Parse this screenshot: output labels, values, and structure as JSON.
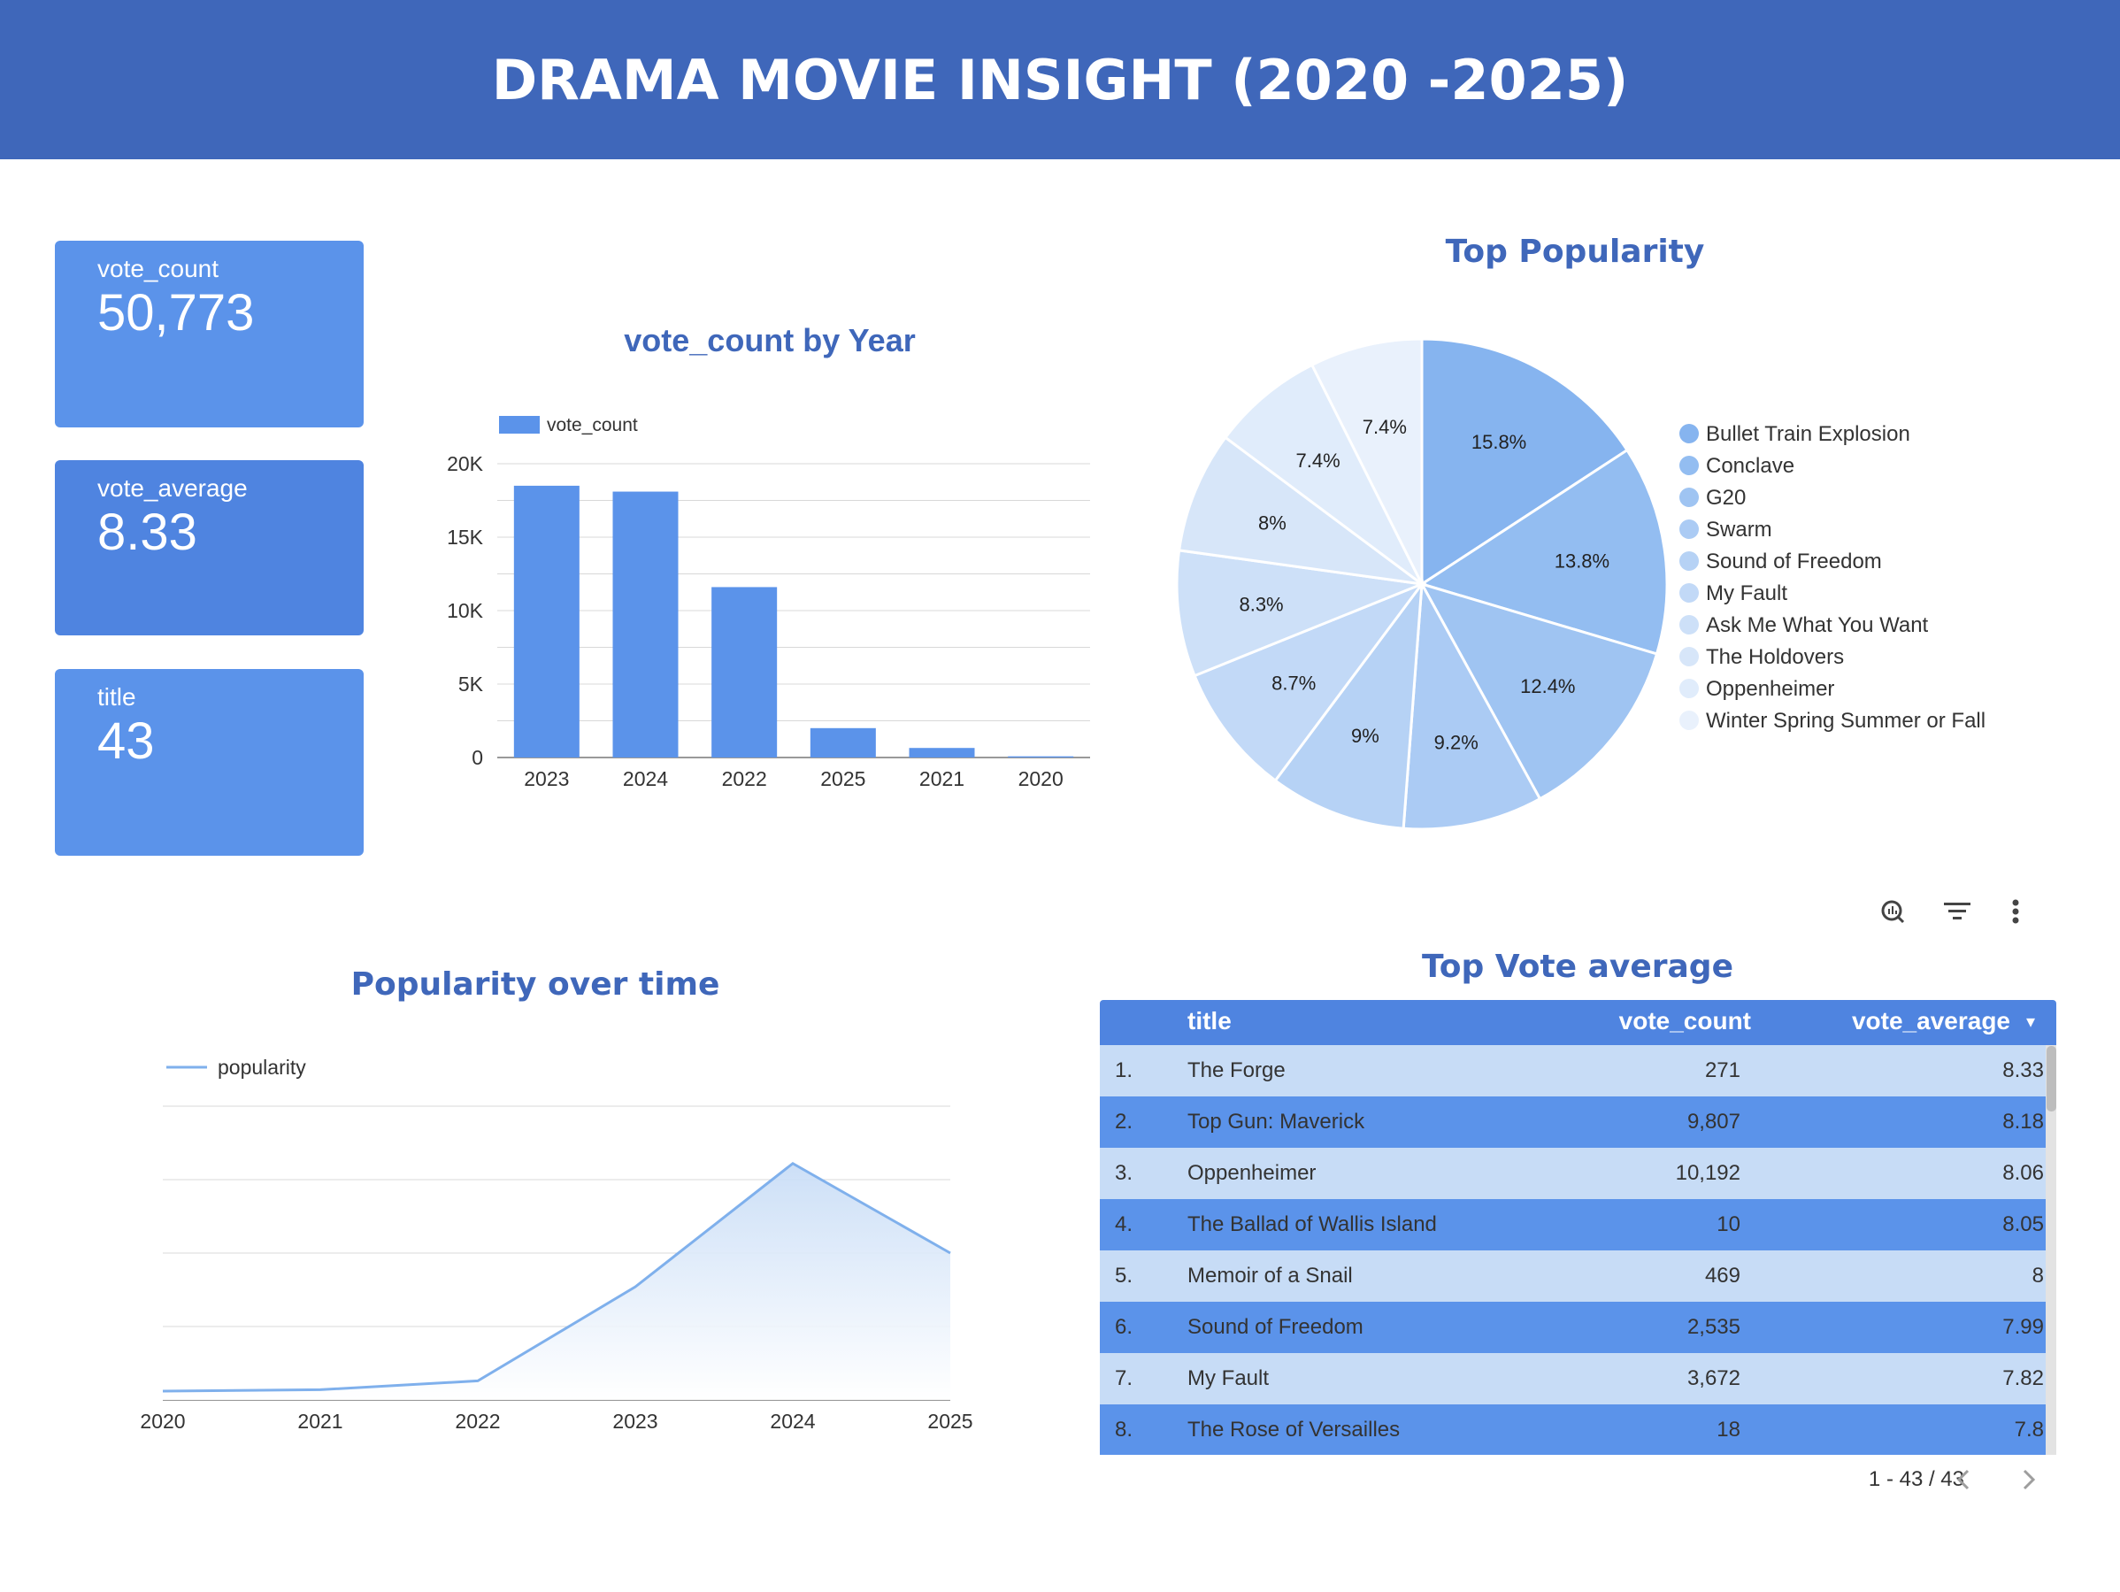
{
  "header": {
    "title": "DRAMA MOVIE INSIGHT (2020 -2025)"
  },
  "kpis": [
    {
      "label": "vote_count",
      "value": "50,773"
    },
    {
      "label": "vote_average",
      "value": "8.33"
    },
    {
      "label": "title",
      "value": "43"
    }
  ],
  "colors": {
    "header": "#3f67ba",
    "kpi": "#5b93ea",
    "kpi_alt": "#4f84e0",
    "bar": "#5b93ea",
    "line": "#7fb0ec",
    "row_light": "#c7dcf6",
    "row_dark": "#5b93ea"
  },
  "chart_data": [
    {
      "type": "bar",
      "title": "vote_count by Year",
      "legend": "vote_count",
      "legend_position": "top-left",
      "categories": [
        "2023",
        "2024",
        "2022",
        "2025",
        "2021",
        "2020"
      ],
      "values": [
        18500,
        18100,
        11600,
        2000,
        650,
        80
      ],
      "ylim": [
        0,
        20000
      ],
      "yticks": [
        "0",
        "5K",
        "10K",
        "15K",
        "20K"
      ],
      "grid": true
    },
    {
      "type": "pie",
      "title": "Top Popularity",
      "legend_position": "right",
      "slices": [
        {
          "label": "Bullet Train Explosion",
          "value": 15.8,
          "text": "15.8%",
          "color": "#86b4ef"
        },
        {
          "label": "Conclave",
          "value": 13.8,
          "text": "13.8%",
          "color": "#93bdf1"
        },
        {
          "label": "G20",
          "value": 12.4,
          "text": "12.4%",
          "color": "#9fc4f2"
        },
        {
          "label": "Swarm",
          "value": 9.2,
          "text": "9.2%",
          "color": "#abcbf4"
        },
        {
          "label": "Sound of Freedom",
          "value": 9.0,
          "text": "9%",
          "color": "#b6d2f5"
        },
        {
          "label": "My Fault",
          "value": 8.7,
          "text": "8.7%",
          "color": "#c2d9f7"
        },
        {
          "label": "Ask Me What You Want",
          "value": 8.3,
          "text": "8.3%",
          "color": "#cde0f8"
        },
        {
          "label": "The Holdovers",
          "value": 8.0,
          "text": "8%",
          "color": "#d7e6f9"
        },
        {
          "label": "Oppenheimer",
          "value": 7.4,
          "text": "7.4%",
          "color": "#e0ecfb"
        },
        {
          "label": "Winter Spring Summer or Fall",
          "value": 7.4,
          "text": "7.4%",
          "color": "#e9f1fc"
        }
      ]
    },
    {
      "type": "area",
      "title": "Popularity over time",
      "legend": "popularity",
      "legend_position": "top-left",
      "x": [
        "2020",
        "2021",
        "2022",
        "2023",
        "2024",
        "2025"
      ],
      "values": [
        0.6,
        0.7,
        1.3,
        7.7,
        16.1,
        10.0
      ],
      "ylim": [
        0,
        20
      ],
      "grid": true
    }
  ],
  "table": {
    "title": "Top Vote average",
    "columns": [
      "title",
      "vote_count",
      "vote_average"
    ],
    "sort_indicator": "▾",
    "rows": [
      {
        "rank": "1.",
        "title": "The Forge",
        "vote_count": "271",
        "vote_average": "8.33"
      },
      {
        "rank": "2.",
        "title": "Top Gun: Maverick",
        "vote_count": "9,807",
        "vote_average": "8.18"
      },
      {
        "rank": "3.",
        "title": "Oppenheimer",
        "vote_count": "10,192",
        "vote_average": "8.06"
      },
      {
        "rank": "4.",
        "title": "The Ballad of Wallis Island",
        "vote_count": "10",
        "vote_average": "8.05"
      },
      {
        "rank": "5.",
        "title": "Memoir of a Snail",
        "vote_count": "469",
        "vote_average": "8"
      },
      {
        "rank": "6.",
        "title": "Sound of Freedom",
        "vote_count": "2,535",
        "vote_average": "7.99"
      },
      {
        "rank": "7.",
        "title": "My Fault",
        "vote_count": "3,672",
        "vote_average": "7.82"
      },
      {
        "rank": "8.",
        "title": "The Rose of Versailles",
        "vote_count": "18",
        "vote_average": "7.8"
      }
    ],
    "pagination": "1 - 43 / 43",
    "icons": [
      "explore-icon",
      "filter-icon",
      "more-vert-icon",
      "chevron-left-icon",
      "chevron-right-icon"
    ]
  }
}
